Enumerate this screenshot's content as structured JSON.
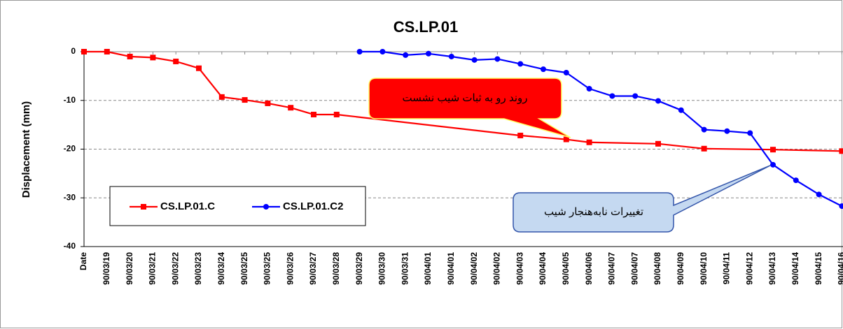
{
  "chart_data": {
    "type": "line",
    "title": "CS.LP.01",
    "y_label": "Displacement (mm)",
    "categories": [
      "Date",
      "90/03/19",
      "90/03/20",
      "90/03/21",
      "90/03/22",
      "90/03/23",
      "90/03/24",
      "90/03/25",
      "90/03/25",
      "90/03/26",
      "90/03/27",
      "90/03/28",
      "90/03/29",
      "90/03/30",
      "90/03/31",
      "90/04/01",
      "90/04/01",
      "90/04/02",
      "90/04/02",
      "90/04/03",
      "90/04/04",
      "90/04/05",
      "90/04/06",
      "90/04/07",
      "90/04/07",
      "90/04/08",
      "90/04/09",
      "90/04/10",
      "90/04/11",
      "90/04/12",
      "90/04/13",
      "90/04/14",
      "90/04/15",
      "90/04/16"
    ],
    "series": [
      {
        "name": "CS.LP.01.C",
        "color": "#ff0000",
        "marker": "square",
        "values": [
          0,
          0,
          -1,
          -1.2,
          -2,
          -3.4,
          -9.3,
          -9.9,
          -10.6,
          -11.5,
          -12.9,
          -12.9,
          null,
          null,
          null,
          null,
          null,
          null,
          null,
          -17.2,
          null,
          -18,
          -18.6,
          null,
          null,
          -18.9,
          null,
          -19.9,
          null,
          null,
          -20.1,
          null,
          null,
          -20.4
        ]
      },
      {
        "name": "CS.LP.01.C2",
        "color": "#0000ff",
        "marker": "circle",
        "values": [
          null,
          null,
          null,
          null,
          null,
          null,
          null,
          null,
          null,
          null,
          null,
          null,
          0,
          0,
          -0.7,
          -0.4,
          -1,
          -1.7,
          -1.5,
          -2.5,
          -3.6,
          -4.3,
          -7.6,
          -9.1,
          -9.1,
          -10.1,
          -12,
          -16,
          -16.3,
          -16.7,
          -23.2,
          -26.4,
          -29.3,
          -31.7
        ]
      }
    ],
    "ylim": [
      -40,
      0
    ],
    "yticks": [
      -40,
      -30,
      -20,
      -10,
      0
    ],
    "grid": true,
    "annotations": [
      {
        "text": "روند رو به ثبات شیب نشست",
        "fill": "#ff0000",
        "border": "#ffff66"
      },
      {
        "text": "تغییرات نابه‌هنجار شیب",
        "fill": "#c5d9f1",
        "border": "#3355aa"
      }
    ]
  }
}
